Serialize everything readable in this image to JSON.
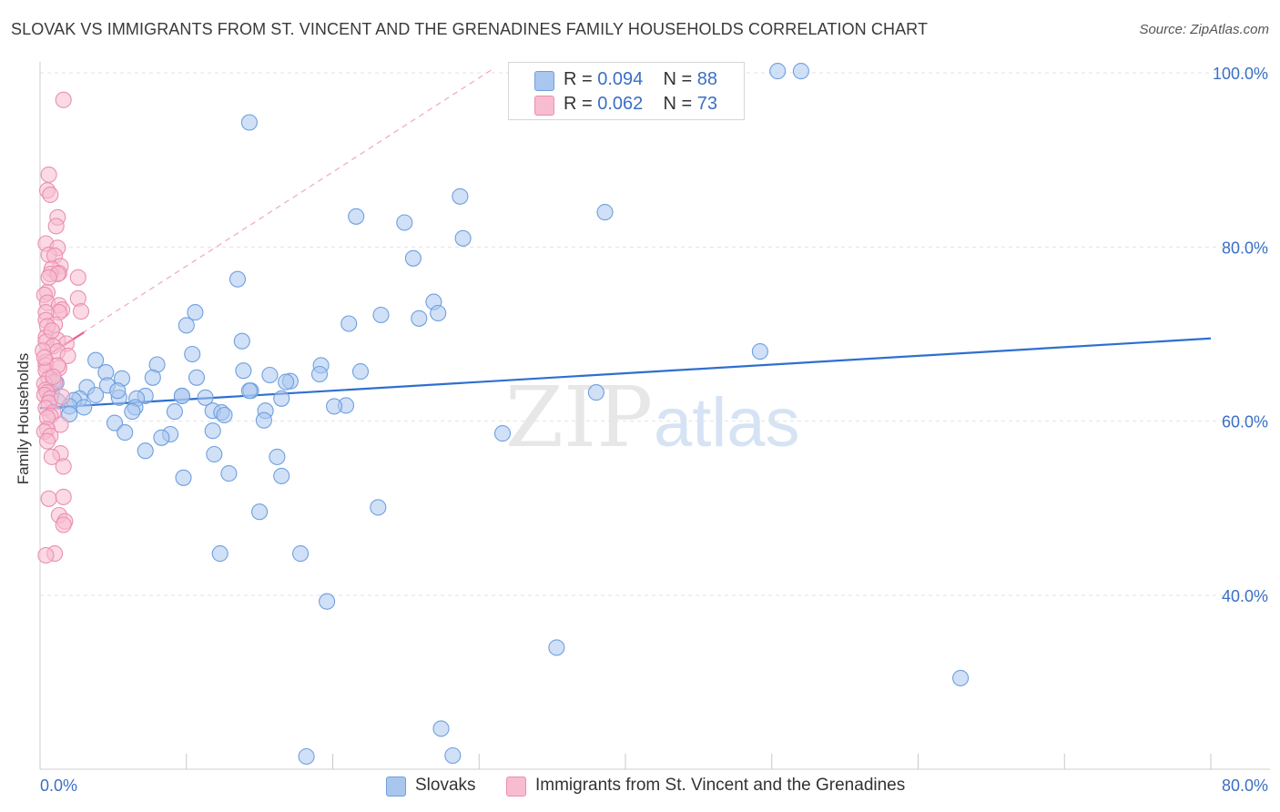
{
  "header": {
    "title": "SLOVAK VS IMMIGRANTS FROM ST. VINCENT AND THE GRENADINES FAMILY HOUSEHOLDS CORRELATION CHART",
    "source": "Source: ZipAtlas.com"
  },
  "stats": {
    "r_label": "R =",
    "n_label": "N =",
    "rows": [
      {
        "r": "0.094",
        "n": "88"
      },
      {
        "r": "0.062",
        "n": "73"
      }
    ]
  },
  "watermark": {
    "part1": "ZIP",
    "part2": "atlas"
  },
  "colors": {
    "blue_fill": "#a9c6ee",
    "blue_stroke": "#6f9fe0",
    "blue_line": "#2f6fcf",
    "pink_fill": "#f7bcd0",
    "pink_stroke": "#ea8fb0",
    "pink_line": "#e8608f",
    "tick_text": "#3a6fc6",
    "grid": "#e3e3e3"
  },
  "chart_data": {
    "type": "scatter",
    "title": "SLOVAK VS IMMIGRANTS FROM ST. VINCENT AND THE GRENADINES FAMILY HOUSEHOLDS CORRELATION CHART",
    "ylabel": "Family Households",
    "xlabel": "",
    "xlim": [
      0,
      80
    ],
    "ylim": [
      20,
      102
    ],
    "x_tick_labels": [
      {
        "value": 0,
        "label": "0.0%"
      },
      {
        "value": 80,
        "label": "80.0%"
      }
    ],
    "y_tick_labels": [
      {
        "value": 100,
        "label": "100.0%"
      },
      {
        "value": 80,
        "label": "80.0%"
      },
      {
        "value": 60,
        "label": "60.0%"
      },
      {
        "value": 40,
        "label": "40.0%"
      }
    ],
    "grid": true,
    "legend_position": "bottom-center",
    "series": [
      {
        "name": "Slovaks",
        "color": "blue",
        "r": 0.094,
        "n": 88,
        "trend": {
          "x": [
            0,
            80
          ],
          "y": [
            61.5,
            69.5
          ]
        },
        "points": [
          [
            50.4,
            100.2
          ],
          [
            52.0,
            100.2
          ],
          [
            14.3,
            94.3
          ],
          [
            28.7,
            85.8
          ],
          [
            21.6,
            83.5
          ],
          [
            24.9,
            82.8
          ],
          [
            38.6,
            84.0
          ],
          [
            28.9,
            81.0
          ],
          [
            25.5,
            78.7
          ],
          [
            13.5,
            76.3
          ],
          [
            26.9,
            73.7
          ],
          [
            10.6,
            72.5
          ],
          [
            23.3,
            72.2
          ],
          [
            27.2,
            72.4
          ],
          [
            25.9,
            71.8
          ],
          [
            21.1,
            71.2
          ],
          [
            10.0,
            71.0
          ],
          [
            13.8,
            69.2
          ],
          [
            10.4,
            67.7
          ],
          [
            49.2,
            68.0
          ],
          [
            3.8,
            67.0
          ],
          [
            8.0,
            66.5
          ],
          [
            19.2,
            66.4
          ],
          [
            4.5,
            65.6
          ],
          [
            13.9,
            65.8
          ],
          [
            21.9,
            65.7
          ],
          [
            15.7,
            65.3
          ],
          [
            19.1,
            65.4
          ],
          [
            7.7,
            65.0
          ],
          [
            10.7,
            65.0
          ],
          [
            5.6,
            64.9
          ],
          [
            17.1,
            64.6
          ],
          [
            16.8,
            64.5
          ],
          [
            0.9,
            64.6
          ],
          [
            1.1,
            64.4
          ],
          [
            4.6,
            64.1
          ],
          [
            3.2,
            63.9
          ],
          [
            14.4,
            63.5
          ],
          [
            38.0,
            63.3
          ],
          [
            0.8,
            63.2
          ],
          [
            7.2,
            62.9
          ],
          [
            9.7,
            62.9
          ],
          [
            6.6,
            62.6
          ],
          [
            11.3,
            62.7
          ],
          [
            5.4,
            62.7
          ],
          [
            2.7,
            62.6
          ],
          [
            2.3,
            62.4
          ],
          [
            1.2,
            62.3
          ],
          [
            16.5,
            62.6
          ],
          [
            20.9,
            61.8
          ],
          [
            20.1,
            61.7
          ],
          [
            6.5,
            61.6
          ],
          [
            2.0,
            61.7
          ],
          [
            3.0,
            61.6
          ],
          [
            6.3,
            61.1
          ],
          [
            11.8,
            61.2
          ],
          [
            9.2,
            61.1
          ],
          [
            12.4,
            61.0
          ],
          [
            12.6,
            60.7
          ],
          [
            15.4,
            61.2
          ],
          [
            2.0,
            60.8
          ],
          [
            15.3,
            60.1
          ],
          [
            5.1,
            59.8
          ],
          [
            31.6,
            58.6
          ],
          [
            5.8,
            58.7
          ],
          [
            11.8,
            58.9
          ],
          [
            8.9,
            58.5
          ],
          [
            8.3,
            58.1
          ],
          [
            7.2,
            56.6
          ],
          [
            11.9,
            56.2
          ],
          [
            16.2,
            55.9
          ],
          [
            12.9,
            54.0
          ],
          [
            9.8,
            53.5
          ],
          [
            16.5,
            53.7
          ],
          [
            23.1,
            50.1
          ],
          [
            15.0,
            49.6
          ],
          [
            12.3,
            44.8
          ],
          [
            17.8,
            44.8
          ],
          [
            19.6,
            39.3
          ],
          [
            35.3,
            34.0
          ],
          [
            62.9,
            30.5
          ],
          [
            27.4,
            24.7
          ],
          [
            28.2,
            21.6
          ],
          [
            18.2,
            21.5
          ],
          [
            14.3,
            63.5
          ],
          [
            9.7,
            62.9
          ],
          [
            5.3,
            63.5
          ],
          [
            3.8,
            63.0
          ]
        ]
      },
      {
        "name": "Immigrants from St. Vincent and the Grenadines",
        "color": "pink",
        "r": 0.062,
        "n": 73,
        "trend": {
          "x": [
            0,
            3
          ],
          "y": [
            67.0,
            70.2
          ]
        },
        "trend_dashed": {
          "x": [
            0,
            31
          ],
          "y": [
            67.0,
            100.5
          ]
        },
        "points": [
          [
            1.6,
            96.9
          ],
          [
            0.6,
            88.3
          ],
          [
            0.5,
            86.5
          ],
          [
            0.7,
            86.0
          ],
          [
            1.2,
            83.4
          ],
          [
            1.1,
            82.4
          ],
          [
            0.4,
            80.4
          ],
          [
            1.2,
            79.9
          ],
          [
            0.6,
            79.1
          ],
          [
            1.0,
            79.0
          ],
          [
            1.4,
            77.8
          ],
          [
            0.8,
            77.5
          ],
          [
            1.3,
            77.0
          ],
          [
            0.7,
            76.9
          ],
          [
            1.2,
            76.9
          ],
          [
            2.6,
            76.5
          ],
          [
            0.6,
            76.5
          ],
          [
            0.5,
            74.8
          ],
          [
            0.3,
            74.5
          ],
          [
            2.6,
            74.1
          ],
          [
            0.5,
            73.6
          ],
          [
            1.3,
            73.3
          ],
          [
            1.5,
            72.8
          ],
          [
            2.8,
            72.6
          ],
          [
            1.3,
            72.5
          ],
          [
            0.4,
            72.5
          ],
          [
            0.4,
            71.6
          ],
          [
            1.0,
            71.1
          ],
          [
            0.5,
            70.9
          ],
          [
            0.4,
            69.6
          ],
          [
            1.2,
            69.3
          ],
          [
            0.4,
            69.1
          ],
          [
            1.8,
            68.9
          ],
          [
            0.9,
            68.6
          ],
          [
            0.2,
            68.1
          ],
          [
            1.2,
            68.0
          ],
          [
            1.9,
            67.5
          ],
          [
            0.4,
            66.8
          ],
          [
            0.4,
            66.4
          ],
          [
            1.3,
            66.1
          ],
          [
            0.4,
            65.8
          ],
          [
            0.6,
            64.9
          ],
          [
            1.0,
            64.5
          ],
          [
            0.3,
            64.3
          ],
          [
            0.4,
            63.6
          ],
          [
            0.5,
            63.3
          ],
          [
            0.3,
            63.0
          ],
          [
            0.7,
            62.6
          ],
          [
            0.6,
            62.1
          ],
          [
            0.4,
            61.5
          ],
          [
            0.9,
            61.0
          ],
          [
            0.7,
            60.6
          ],
          [
            0.5,
            60.4
          ],
          [
            1.4,
            59.6
          ],
          [
            0.5,
            59.1
          ],
          [
            0.3,
            58.8
          ],
          [
            0.7,
            58.3
          ],
          [
            0.5,
            57.7
          ],
          [
            1.4,
            56.3
          ],
          [
            0.8,
            55.9
          ],
          [
            1.6,
            54.8
          ],
          [
            0.6,
            51.1
          ],
          [
            1.6,
            51.3
          ],
          [
            1.3,
            49.2
          ],
          [
            1.7,
            48.5
          ],
          [
            1.6,
            48.1
          ],
          [
            1.0,
            44.8
          ],
          [
            0.4,
            44.6
          ],
          [
            1.2,
            66.4
          ],
          [
            0.3,
            67.3
          ],
          [
            0.8,
            70.4
          ],
          [
            1.5,
            62.8
          ],
          [
            0.9,
            65.1
          ]
        ]
      }
    ]
  }
}
